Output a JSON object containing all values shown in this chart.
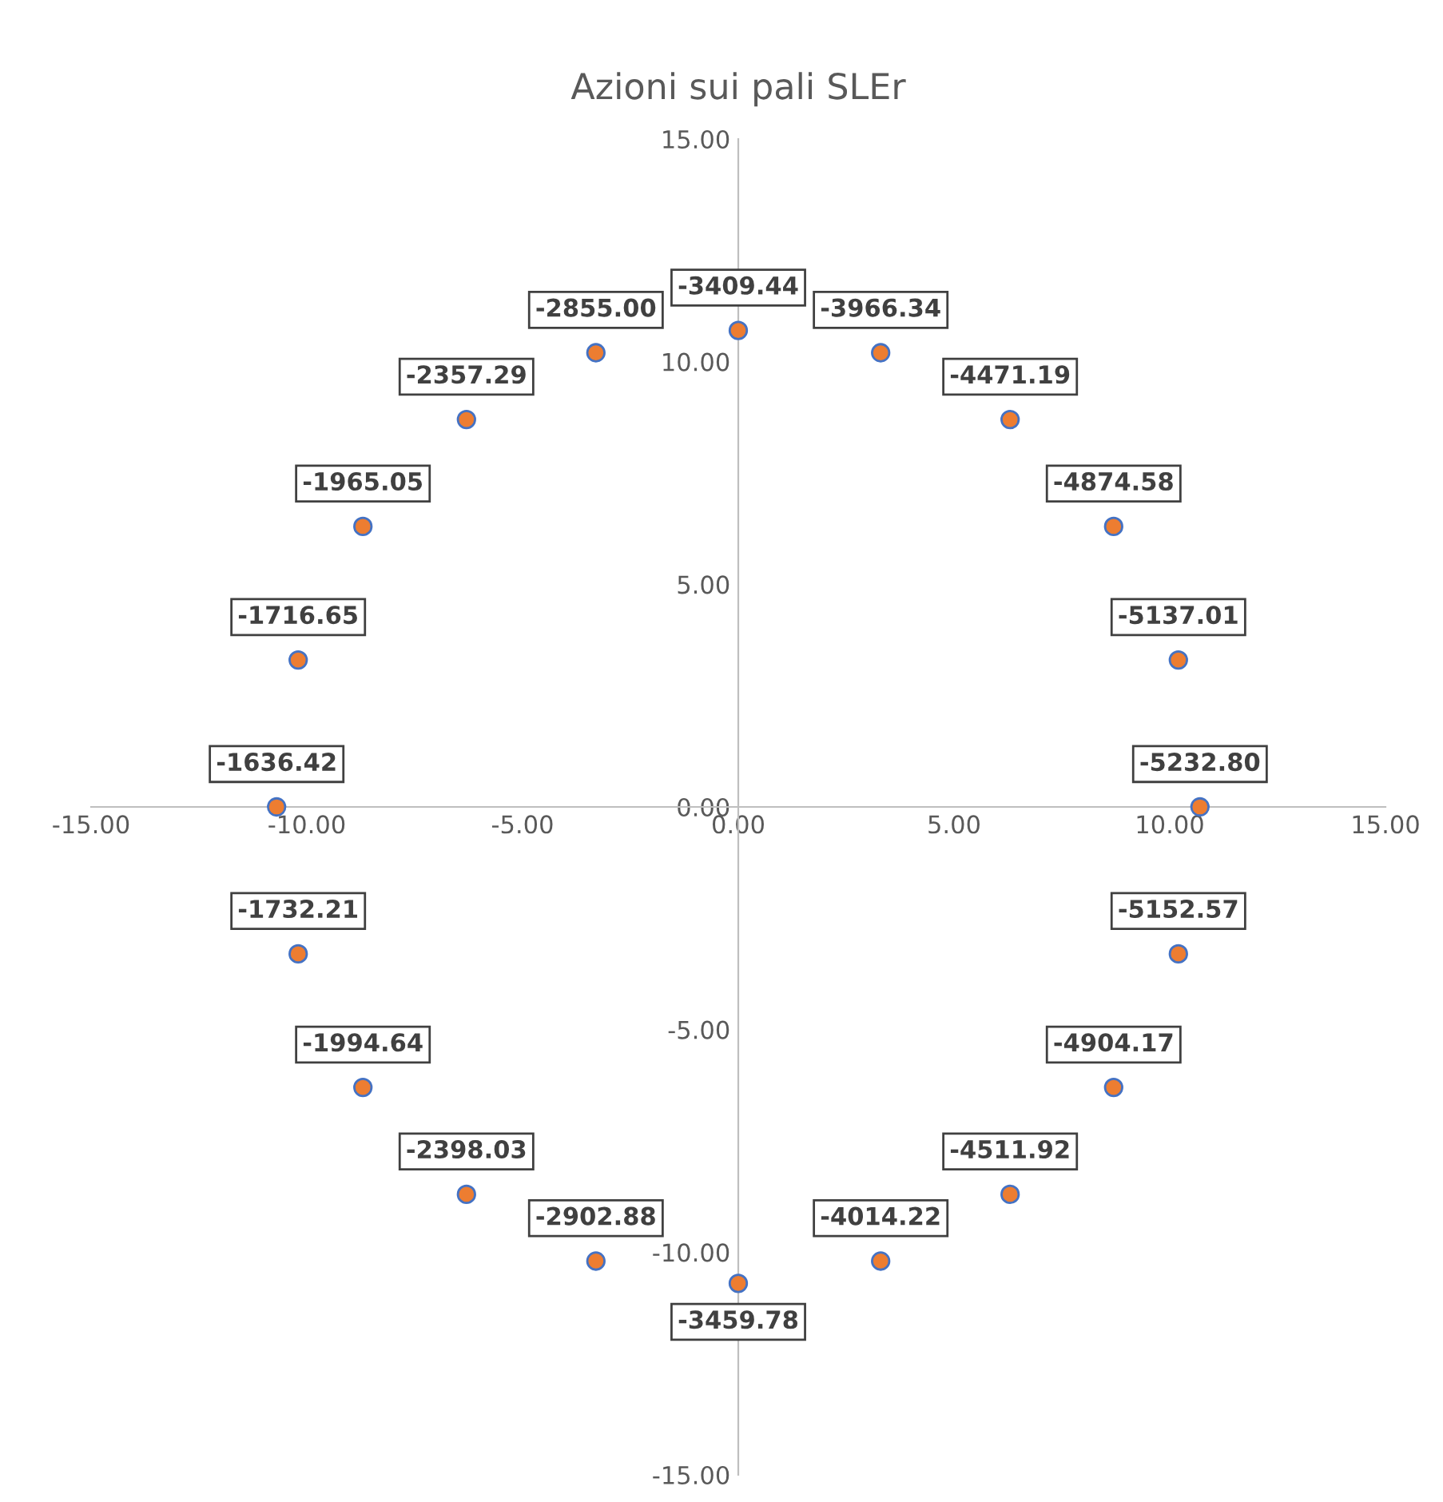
{
  "chart_data": {
    "type": "scatter",
    "title": "Azioni sui pali SLEr",
    "x": [
      10.7,
      10.2,
      8.7,
      6.3,
      3.3,
      0,
      -3.3,
      -6.3,
      -8.7,
      -10.2,
      -10.7,
      -10.2,
      -8.7,
      -6.3,
      -3.3,
      0,
      3.3,
      6.3,
      8.7,
      10.2
    ],
    "values": [
      0,
      3.3,
      6.3,
      8.7,
      10.2,
      10.7,
      10.2,
      8.7,
      6.3,
      3.3,
      0,
      -3.3,
      -6.3,
      -8.7,
      -10.2,
      -10.7,
      -10.2,
      -8.7,
      -6.3,
      -3.3
    ],
    "annotations": [
      {
        "text": "-5232.80",
        "x": 10.7,
        "y": 0
      },
      {
        "text": "-5137.01",
        "x": 10.2,
        "y": 3.3
      },
      {
        "text": "-4874.58",
        "x": 8.7,
        "y": 6.3
      },
      {
        "text": "-4471.19",
        "x": 6.3,
        "y": 8.7
      },
      {
        "text": "-3966.34",
        "x": 3.3,
        "y": 10.2
      },
      {
        "text": "-3409.44",
        "x": 0,
        "y": 10.7
      },
      {
        "text": "-2855.00",
        "x": -3.3,
        "y": 10.2
      },
      {
        "text": "-2357.29",
        "x": -6.3,
        "y": 8.7
      },
      {
        "text": "-1965.05",
        "x": -8.7,
        "y": 6.3
      },
      {
        "text": "-1716.65",
        "x": -10.2,
        "y": 3.3
      },
      {
        "text": "-1636.42",
        "x": -10.7,
        "y": 0
      },
      {
        "text": "-1732.21",
        "x": -10.2,
        "y": -3.3
      },
      {
        "text": "-1994.64",
        "x": -8.7,
        "y": -6.3
      },
      {
        "text": "-2398.03",
        "x": -6.3,
        "y": -8.7
      },
      {
        "text": "-2902.88",
        "x": -3.3,
        "y": -10.2
      },
      {
        "text": "-3459.78",
        "x": 0,
        "y": -10.7
      },
      {
        "text": "-4014.22",
        "x": 3.3,
        "y": -10.2
      },
      {
        "text": "-4511.92",
        "x": 6.3,
        "y": -8.7
      },
      {
        "text": "-4904.17",
        "x": 8.7,
        "y": -6.3
      },
      {
        "text": "-5152.57",
        "x": 10.2,
        "y": -3.3
      }
    ],
    "color": "#ed7d31",
    "marker": "circle",
    "grid": false,
    "legend": false,
    "xlim": [
      -15,
      15
    ],
    "ylim": [
      -15,
      15
    ],
    "xticks": [
      {
        "value": -15,
        "label": "-15.00"
      },
      {
        "value": -10,
        "label": "-10.00"
      },
      {
        "value": -5,
        "label": "-5.00"
      },
      {
        "value": 0,
        "label": "0.00"
      },
      {
        "value": 5,
        "label": "5.00"
      },
      {
        "value": 10,
        "label": "10.00"
      },
      {
        "value": 15,
        "label": "15.00"
      }
    ],
    "yticks": [
      {
        "value": -15,
        "label": "-15.00"
      },
      {
        "value": -10,
        "label": "-10.00"
      },
      {
        "value": -5,
        "label": "-5.00"
      },
      {
        "value": 0,
        "label": "0.00"
      },
      {
        "value": 5,
        "label": "5.00"
      },
      {
        "value": 10,
        "label": "10.00"
      },
      {
        "value": 15,
        "label": "15.00"
      }
    ]
  }
}
